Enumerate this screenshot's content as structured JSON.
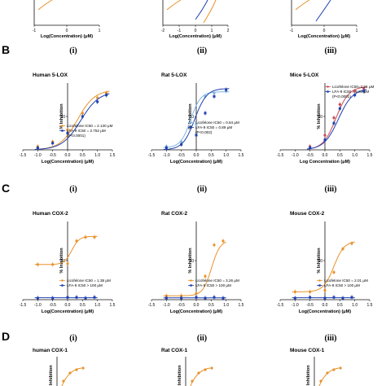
{
  "colors": {
    "licofelone": "#e8922a",
    "lfa9": "#1f3fae",
    "rat_licofelone": "#7fb6e0",
    "mice_licofelone": "#c94a55",
    "axis": "#111111"
  },
  "rows": [
    {
      "letter": "",
      "panels": [
        {
          "roman": "",
          "title": "",
          "xlabel": "Log(Concentration) (μM)",
          "ylabel": "",
          "xticks": [
            "-1",
            "0",
            "1"
          ],
          "legend": []
        },
        {
          "roman": "",
          "title": "",
          "xlabel": "Log(Concentration) (μM)",
          "ylabel": "",
          "xticks": [
            "-2",
            "-1",
            "0",
            "1",
            "2"
          ],
          "legend": []
        },
        {
          "roman": "",
          "title": "",
          "xlabel": "Log(Concentration) (μM)",
          "ylabel": "",
          "xticks": [
            "-1",
            "0",
            "1"
          ],
          "legend": []
        }
      ]
    },
    {
      "letter": "B",
      "panels": [
        {
          "roman": "(i)",
          "title": "Human 5-LOX",
          "xlabel": "Log(Concentration) (μM)",
          "ylabel": "% Inhibition",
          "xticks": [
            "-1.5",
            "-1.0",
            "-0.5",
            "0.0",
            "0.5",
            "1.0",
            "1.5"
          ],
          "yticks": [
            "50"
          ],
          "legend": [
            "Licofelone IC50 = 2.130 μM",
            "LFA-9 IC50 = 2.752 μM",
            "(P<0.0001)"
          ]
        },
        {
          "roman": "(ii)",
          "title": "Rat 5-LOX",
          "xlabel": "Log(Concentration) (μM)",
          "ylabel": "% Inhibition",
          "xticks": [
            "-1.5",
            "-1.0",
            "-0.5",
            "0.0",
            "0.5",
            "1.0",
            "1.5"
          ],
          "yticks": [
            "50"
          ],
          "legend": [
            "Licofelone IC50 = 0.64 μM",
            "LFA-9 IC50 = 0.89 μM",
            "(P<0.002)"
          ]
        },
        {
          "roman": "(iii)",
          "title": "Mice 5-LOX",
          "xlabel": "Log Concentration (μM)",
          "ylabel": "% Inhibition",
          "xticks": [
            "-1.5",
            "-1.0",
            "-0.5",
            "0.0",
            "0.5",
            "1.0",
            "1.5"
          ],
          "yticks": [
            "50"
          ],
          "legend": [
            "Licofelone IC50=2.34 μM",
            "LFA-9 IC50 = 2.84 μM",
            "(P<0.0001)"
          ]
        }
      ]
    },
    {
      "letter": "C",
      "panels": [
        {
          "roman": "(i)",
          "title": "Human COX-2",
          "xlabel": "Log(Concentration) (μM)",
          "ylabel": "% Inhibition",
          "xticks": [
            "-1.5",
            "-1.0",
            "-0.5",
            "0.0",
            "0.5",
            "1.0",
            "1.5"
          ],
          "yticks": [
            "50"
          ],
          "legend": [
            "Licofelone IC50 = 1.38 μM",
            "LFA-9 IC50 > 100 μM"
          ]
        },
        {
          "roman": "(ii)",
          "title": "Rat COX-2",
          "xlabel": "Log(Concentration) (μM)",
          "ylabel": "% Inhibition",
          "xticks": [
            "-1.5",
            "-1.0",
            "-0.5",
            "0.0",
            "0.5",
            "1.0",
            "1.5"
          ],
          "yticks": [
            "50"
          ],
          "legend": [
            "Licofelone IC50 = 3.26 μM",
            "LFA-9 IC50 > 100 μM"
          ]
        },
        {
          "roman": "(iii)",
          "title": "Mouse COX-2",
          "xlabel": "Log(Concentration) (μM)",
          "ylabel": "% Inhibition",
          "xticks": [
            "-1.5",
            "-1.0",
            "-0.5",
            "0.0",
            "0.5",
            "1.0",
            "1.5"
          ],
          "yticks": [
            "50"
          ],
          "legend": [
            "Licofelone IC50 = 2.01 μM",
            "LFA-9 IC50 > 100 μM"
          ]
        }
      ]
    },
    {
      "letter": "D",
      "panels": [
        {
          "roman": "(i)",
          "title": "human COX-1",
          "xlabel": "",
          "ylabel": "% Inhibition",
          "xticks": [],
          "legend": []
        },
        {
          "roman": "(ii)",
          "title": "Rat COX-1",
          "xlabel": "",
          "ylabel": "% Inhibition",
          "xticks": [],
          "legend": []
        },
        {
          "roman": "(iii)",
          "title": "Mouse COX-1",
          "xlabel": "",
          "ylabel": "% Inhibition",
          "xticks": [],
          "legend": []
        }
      ]
    }
  ],
  "chart_data": [
    {
      "type": "scatter",
      "panel": "B(i)",
      "title": "Human 5-LOX",
      "xlabel": "Log(Concentration) (μM)",
      "ylabel": "% Inhibition",
      "xlim": [
        -1.5,
        1.5
      ],
      "ylim": [
        0,
        100
      ],
      "series": [
        {
          "name": "Licofelone",
          "x": [
            -1.0,
            -0.5,
            0.0,
            0.5,
            1.0,
            1.3
          ],
          "y": [
            5,
            12,
            30,
            55,
            78,
            85
          ]
        },
        {
          "name": "LFA-9",
          "x": [
            -1.0,
            -0.5,
            0.0,
            0.5,
            1.0,
            1.3
          ],
          "y": [
            3,
            10,
            25,
            50,
            72,
            82
          ]
        }
      ]
    },
    {
      "type": "scatter",
      "panel": "B(ii)",
      "title": "Rat 5-LOX",
      "xlabel": "Log(Concentration) (μM)",
      "ylabel": "% Inhibition",
      "xlim": [
        -1.5,
        1.5
      ],
      "ylim": [
        0,
        100
      ],
      "series": [
        {
          "name": "Licofelone",
          "x": [
            -1.0,
            -0.5,
            0.0,
            0.3,
            0.6,
            1.0
          ],
          "y": [
            5,
            12,
            38,
            80,
            85,
            88
          ]
        },
        {
          "name": "LFA-9",
          "x": [
            -1.0,
            -0.5,
            0.0,
            0.3,
            0.6,
            1.0
          ],
          "y": [
            3,
            8,
            22,
            55,
            80,
            90
          ]
        }
      ]
    },
    {
      "type": "scatter",
      "panel": "B(iii)",
      "title": "Mice 5-LOX",
      "xlabel": "Log Concentration (μM)",
      "ylabel": "% Inhibition",
      "xlim": [
        -1.5,
        1.5
      ],
      "ylim": [
        0,
        100
      ],
      "series": [
        {
          "name": "Licofelone",
          "x": [
            -0.5,
            0.0,
            0.3,
            0.5,
            1.0,
            1.3
          ],
          "y": [
            5,
            22,
            48,
            68,
            88,
            92
          ]
        },
        {
          "name": "LFA-9",
          "x": [
            -0.5,
            0.0,
            0.3,
            0.5,
            1.0,
            1.3
          ],
          "y": [
            3,
            15,
            40,
            62,
            82,
            88
          ]
        }
      ]
    },
    {
      "type": "scatter",
      "panel": "C(i)",
      "title": "Human COX-2",
      "xlabel": "Log(Concentration) (μM)",
      "ylabel": "% Inhibition",
      "xlim": [
        -1.5,
        1.5
      ],
      "ylim": [
        0,
        100
      ],
      "series": [
        {
          "name": "Licofelone",
          "x": [
            -1.0,
            -0.5,
            0.0,
            0.3,
            0.6,
            0.9
          ],
          "y": [
            45,
            45,
            46,
            75,
            80,
            80
          ]
        },
        {
          "name": "LFA-9",
          "x": [
            -1.0,
            -0.5,
            0.0,
            0.3,
            0.6,
            0.9
          ],
          "y": [
            2,
            2,
            3,
            3,
            2,
            3
          ]
        }
      ]
    },
    {
      "type": "scatter",
      "panel": "C(ii)",
      "title": "Rat COX-2",
      "xlabel": "Log(Concentration) (μM)",
      "ylabel": "% Inhibition",
      "xlim": [
        -1.5,
        1.5
      ],
      "ylim": [
        0,
        100
      ],
      "series": [
        {
          "name": "Licofelone",
          "x": [
            -1.0,
            -0.5,
            0.0,
            0.3,
            0.6,
            0.9
          ],
          "y": [
            5,
            5,
            8,
            30,
            70,
            75
          ]
        },
        {
          "name": "LFA-9",
          "x": [
            -1.0,
            -0.5,
            0.0,
            0.3,
            0.6,
            0.9
          ],
          "y": [
            2,
            2,
            3,
            2,
            3,
            2
          ]
        }
      ]
    },
    {
      "type": "scatter",
      "panel": "C(iii)",
      "title": "Mouse COX-2",
      "xlabel": "Log(Concentration) (μM)",
      "ylabel": "% Inhibition",
      "xlim": [
        -1.5,
        1.5
      ],
      "ylim": [
        0,
        100
      ],
      "series": [
        {
          "name": "Licofelone",
          "x": [
            -1.0,
            -0.5,
            0.0,
            0.3,
            0.6,
            0.9
          ],
          "y": [
            10,
            10,
            12,
            35,
            65,
            72
          ]
        },
        {
          "name": "LFA-9",
          "x": [
            -1.0,
            -0.5,
            0.0,
            0.3,
            0.6,
            0.9
          ],
          "y": [
            2,
            3,
            2,
            3,
            2,
            3
          ]
        }
      ]
    }
  ]
}
